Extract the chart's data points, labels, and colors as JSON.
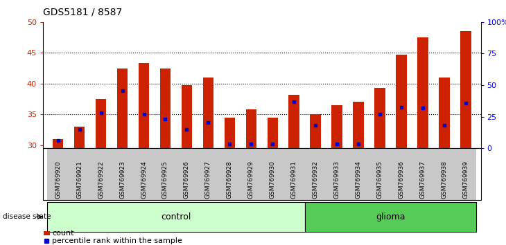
{
  "title": "GDS5181 / 8587",
  "samples": [
    "GSM769920",
    "GSM769921",
    "GSM769922",
    "GSM769923",
    "GSM769924",
    "GSM769925",
    "GSM769926",
    "GSM769927",
    "GSM769928",
    "GSM769929",
    "GSM769930",
    "GSM769931",
    "GSM769932",
    "GSM769933",
    "GSM769934",
    "GSM769935",
    "GSM769936",
    "GSM769937",
    "GSM769938",
    "GSM769939"
  ],
  "count_values": [
    31.0,
    33.0,
    37.5,
    42.5,
    43.3,
    42.5,
    39.7,
    41.0,
    34.5,
    35.8,
    34.5,
    38.2,
    35.0,
    36.5,
    37.0,
    39.3,
    44.7,
    47.5,
    41.0,
    48.5
  ],
  "percentile_values": [
    30.8,
    32.5,
    35.3,
    38.8,
    35.0,
    34.2,
    32.5,
    33.7,
    30.2,
    30.2,
    30.2,
    37.0,
    33.2,
    30.2,
    30.2,
    35.0,
    36.2,
    36.0,
    33.2,
    36.8
  ],
  "bar_color": "#cc2200",
  "percentile_color": "#0000cc",
  "ylim_left": [
    29.5,
    50
  ],
  "ylim_right": [
    0,
    100
  ],
  "yticks_left": [
    30,
    35,
    40,
    45,
    50
  ],
  "yticks_right": [
    0,
    25,
    50,
    75,
    100
  ],
  "control_count": 12,
  "glioma_count": 8,
  "control_label": "control",
  "glioma_label": "glioma",
  "disease_state_label": "disease state",
  "legend_count": "count",
  "legend_percentile": "percentile rank within the sample",
  "bar_width": 0.5,
  "bg_color": "#c8c8c8",
  "control_bg": "#ccffcc",
  "glioma_bg": "#55cc55"
}
